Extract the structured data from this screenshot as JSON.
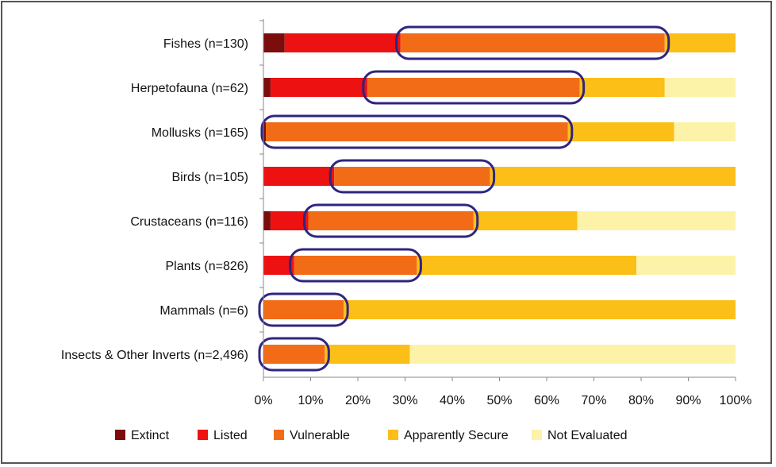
{
  "chart_data": {
    "type": "bar",
    "stacked": true,
    "orientation": "horizontal",
    "percent_scale": true,
    "title": "",
    "xlabel": "",
    "ylabel": "",
    "xlim": [
      0,
      100
    ],
    "x_ticks": [
      "0%",
      "10%",
      "20%",
      "30%",
      "40%",
      "50%",
      "60%",
      "70%",
      "80%",
      "90%",
      "100%"
    ],
    "grid": false,
    "legend_position": "bottom",
    "categories": [
      "Fishes (n=130)",
      "Herpetofauna (n=62)",
      "Mollusks (n=165)",
      "Birds (n=105)",
      "Crustaceans (n=116)",
      "Plants (n=826)",
      "Mammals (n=6)",
      "Insects & Other Inverts (n=2,496)"
    ],
    "series": [
      {
        "name": "Extinct",
        "color": "#7b0d0d",
        "values": [
          4.5,
          1.5,
          0.5,
          0,
          1.5,
          0,
          0,
          0
        ]
      },
      {
        "name": "Listed",
        "color": "#ee1111",
        "values": [
          24.5,
          20.5,
          0,
          15,
          8,
          6.5,
          0,
          0
        ]
      },
      {
        "name": "Vulnerable",
        "color": "#f26c18",
        "values": [
          56,
          45,
          64,
          33,
          35,
          26,
          17,
          13
        ]
      },
      {
        "name": "Apparently Secure",
        "color": "#fbbf17",
        "values": [
          15,
          18,
          22.5,
          52,
          22,
          46.5,
          83,
          18
        ]
      },
      {
        "name": "Not Evaluated",
        "color": "#fdf3a8",
        "values": [
          0,
          15,
          13,
          0,
          33.5,
          21,
          0,
          69
        ]
      }
    ],
    "highlight_outline_color": "#2e2580"
  }
}
